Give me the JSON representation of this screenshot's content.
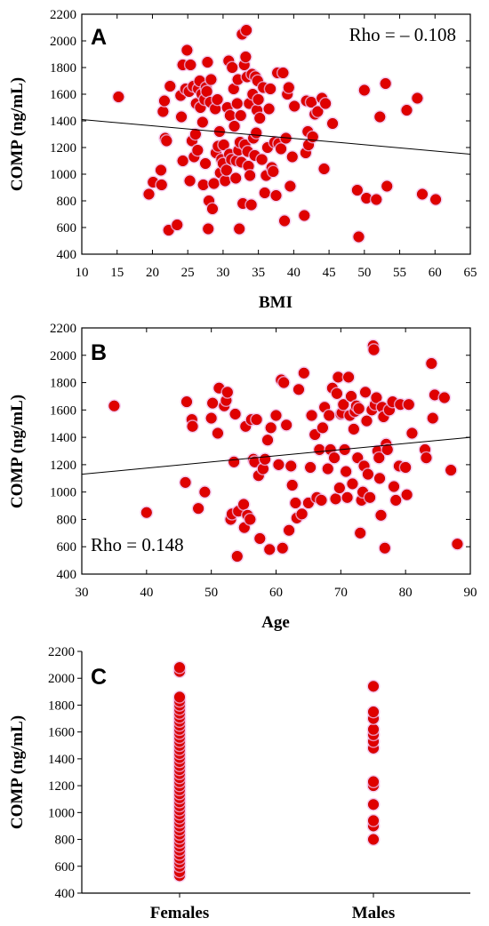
{
  "colors": {
    "point_fill": "#e00000",
    "point_halo": "#f4b8e8",
    "axis": "#000000"
  },
  "chart_data": [
    {
      "panel": "A",
      "type": "scatter",
      "xlabel": "BMI",
      "ylabel": "COMP (ng/mL)",
      "annotation": "Rho = – 0.108",
      "xlim": [
        10,
        65
      ],
      "ylim": [
        400,
        2200
      ],
      "xticks": [
        10,
        15,
        20,
        25,
        30,
        35,
        40,
        45,
        50,
        55,
        60,
        65
      ],
      "yticks": [
        400,
        600,
        800,
        1000,
        1200,
        1400,
        1600,
        1800,
        2000,
        2200
      ],
      "trendline": [
        [
          10,
          1410
        ],
        [
          65,
          1150
        ]
      ],
      "points": [
        [
          15.2,
          1580
        ],
        [
          19.5,
          850
        ],
        [
          20.1,
          940
        ],
        [
          21.3,
          920
        ],
        [
          21.2,
          1030
        ],
        [
          21.5,
          1470
        ],
        [
          21.7,
          1550
        ],
        [
          21.8,
          1270
        ],
        [
          22.0,
          1250
        ],
        [
          22.3,
          580
        ],
        [
          22.5,
          1660
        ],
        [
          23.5,
          620
        ],
        [
          24.0,
          1590
        ],
        [
          24.1,
          1430
        ],
        [
          24.3,
          1820
        ],
        [
          24.3,
          1100
        ],
        [
          24.7,
          1640
        ],
        [
          24.9,
          1930
        ],
        [
          25.2,
          1620
        ],
        [
          25.3,
          950
        ],
        [
          25.4,
          1820
        ],
        [
          25.6,
          1250
        ],
        [
          25.8,
          1660
        ],
        [
          25.9,
          1130
        ],
        [
          26.1,
          1300
        ],
        [
          26.2,
          1530
        ],
        [
          26.4,
          1180
        ],
        [
          26.5,
          1640
        ],
        [
          26.7,
          1700
        ],
        [
          26.8,
          1500
        ],
        [
          27.0,
          1600
        ],
        [
          27.1,
          1390
        ],
        [
          27.2,
          920
        ],
        [
          27.4,
          1560
        ],
        [
          27.5,
          1080
        ],
        [
          27.6,
          1650
        ],
        [
          27.7,
          1620
        ],
        [
          27.8,
          1840
        ],
        [
          27.9,
          590
        ],
        [
          28.0,
          800
        ],
        [
          28.2,
          1540
        ],
        [
          28.3,
          1710
        ],
        [
          28.5,
          740
        ],
        [
          28.7,
          930
        ],
        [
          28.9,
          1490
        ],
        [
          29.0,
          1160
        ],
        [
          29.2,
          1560
        ],
        [
          29.3,
          1210
        ],
        [
          29.5,
          1320
        ],
        [
          29.6,
          1010
        ],
        [
          29.8,
          1110
        ],
        [
          30.0,
          1080
        ],
        [
          30.1,
          1220
        ],
        [
          30.3,
          950
        ],
        [
          30.5,
          1030
        ],
        [
          30.6,
          1500
        ],
        [
          30.8,
          1850
        ],
        [
          30.9,
          1150
        ],
        [
          31.0,
          1440
        ],
        [
          31.2,
          1110
        ],
        [
          31.3,
          1800
        ],
        [
          31.5,
          1640
        ],
        [
          31.6,
          1360
        ],
        [
          31.8,
          970
        ],
        [
          31.9,
          1100
        ],
        [
          32.0,
          1530
        ],
        [
          32.1,
          1710
        ],
        [
          32.2,
          1180
        ],
        [
          32.3,
          590
        ],
        [
          32.4,
          1240
        ],
        [
          32.5,
          1440
        ],
        [
          32.6,
          1090
        ],
        [
          32.7,
          2050
        ],
        [
          32.8,
          780
        ],
        [
          33.0,
          1820
        ],
        [
          33.1,
          1220
        ],
        [
          33.2,
          1880
        ],
        [
          33.3,
          2080
        ],
        [
          33.4,
          1730
        ],
        [
          33.5,
          1170
        ],
        [
          33.6,
          1060
        ],
        [
          33.7,
          1530
        ],
        [
          33.8,
          990
        ],
        [
          34.0,
          770
        ],
        [
          34.1,
          1750
        ],
        [
          34.2,
          1600
        ],
        [
          34.3,
          1270
        ],
        [
          34.5,
          1140
        ],
        [
          34.6,
          1730
        ],
        [
          34.7,
          1310
        ],
        [
          34.8,
          1480
        ],
        [
          34.9,
          1700
        ],
        [
          35.0,
          1560
        ],
        [
          35.2,
          1420
        ],
        [
          35.5,
          1110
        ],
        [
          35.7,
          1650
        ],
        [
          35.9,
          860
        ],
        [
          36.1,
          990
        ],
        [
          36.3,
          1200
        ],
        [
          36.5,
          1490
        ],
        [
          36.7,
          1640
        ],
        [
          36.9,
          1050
        ],
        [
          37.1,
          1020
        ],
        [
          37.3,
          1240
        ],
        [
          37.5,
          840
        ],
        [
          37.7,
          1760
        ],
        [
          37.9,
          1230
        ],
        [
          38.2,
          1190
        ],
        [
          38.5,
          1760
        ],
        [
          38.7,
          650
        ],
        [
          38.9,
          1270
        ],
        [
          39.1,
          1600
        ],
        [
          39.3,
          1650
        ],
        [
          39.5,
          910
        ],
        [
          39.8,
          1130
        ],
        [
          40.1,
          1510
        ],
        [
          41.5,
          690
        ],
        [
          41.7,
          1160
        ],
        [
          41.8,
          1550
        ],
        [
          42.0,
          1320
        ],
        [
          42.1,
          1220
        ],
        [
          42.5,
          1540
        ],
        [
          42.7,
          1280
        ],
        [
          43.0,
          1450
        ],
        [
          43.4,
          1470
        ],
        [
          44.0,
          1570
        ],
        [
          44.3,
          1040
        ],
        [
          44.5,
          1530
        ],
        [
          45.5,
          1380
        ],
        [
          49.0,
          880
        ],
        [
          49.2,
          530
        ],
        [
          50.0,
          1630
        ],
        [
          50.3,
          820
        ],
        [
          51.7,
          810
        ],
        [
          52.2,
          1430
        ],
        [
          53.0,
          1680
        ],
        [
          53.2,
          910
        ],
        [
          56.0,
          1480
        ],
        [
          57.5,
          1570
        ],
        [
          58.2,
          850
        ],
        [
          60.1,
          810
        ]
      ]
    },
    {
      "panel": "B",
      "type": "scatter",
      "xlabel": "Age",
      "ylabel": "COMP (ng/mL)",
      "annotation": "Rho = 0.148",
      "xlim": [
        30,
        90
      ],
      "ylim": [
        400,
        2200
      ],
      "xticks": [
        30,
        40,
        50,
        60,
        70,
        80,
        90
      ],
      "yticks": [
        400,
        600,
        800,
        1000,
        1200,
        1400,
        1600,
        1800,
        2000,
        2200
      ],
      "trendline": [
        [
          30,
          1130
        ],
        [
          90,
          1400
        ]
      ],
      "points": [
        [
          35.0,
          1630
        ],
        [
          40.0,
          850
        ],
        [
          46.0,
          1070
        ],
        [
          46.2,
          1660
        ],
        [
          47.0,
          1530
        ],
        [
          47.1,
          1480
        ],
        [
          48.0,
          880
        ],
        [
          49.0,
          1000
        ],
        [
          50.0,
          1540
        ],
        [
          50.2,
          1650
        ],
        [
          51.0,
          1430
        ],
        [
          51.2,
          1760
        ],
        [
          52.0,
          1630
        ],
        [
          52.3,
          1670
        ],
        [
          52.5,
          1730
        ],
        [
          53.0,
          800
        ],
        [
          53.2,
          840
        ],
        [
          53.5,
          1220
        ],
        [
          53.7,
          1570
        ],
        [
          54.0,
          530
        ],
        [
          54.2,
          860
        ],
        [
          55.0,
          910
        ],
        [
          55.1,
          740
        ],
        [
          55.3,
          1480
        ],
        [
          55.6,
          830
        ],
        [
          56.0,
          800
        ],
        [
          56.2,
          1530
        ],
        [
          56.5,
          1240
        ],
        [
          56.7,
          1220
        ],
        [
          57.0,
          1530
        ],
        [
          57.3,
          1120
        ],
        [
          57.5,
          660
        ],
        [
          58.0,
          1170
        ],
        [
          58.3,
          1240
        ],
        [
          58.7,
          1380
        ],
        [
          59.0,
          580
        ],
        [
          59.2,
          1470
        ],
        [
          60.0,
          1560
        ],
        [
          60.4,
          1200
        ],
        [
          60.8,
          1820
        ],
        [
          61.0,
          590
        ],
        [
          61.2,
          1800
        ],
        [
          61.6,
          1490
        ],
        [
          62.0,
          720
        ],
        [
          62.3,
          1190
        ],
        [
          62.5,
          1050
        ],
        [
          63.0,
          920
        ],
        [
          63.2,
          810
        ],
        [
          63.5,
          1750
        ],
        [
          64.0,
          840
        ],
        [
          64.3,
          1870
        ],
        [
          65.0,
          920
        ],
        [
          65.3,
          1180
        ],
        [
          65.5,
          1560
        ],
        [
          66.0,
          1420
        ],
        [
          66.3,
          960
        ],
        [
          66.7,
          1310
        ],
        [
          67.0,
          940
        ],
        [
          67.2,
          1470
        ],
        [
          67.5,
          1620
        ],
        [
          68.0,
          1170
        ],
        [
          68.2,
          1560
        ],
        [
          68.4,
          1310
        ],
        [
          68.7,
          1760
        ],
        [
          69.0,
          1250
        ],
        [
          69.2,
          950
        ],
        [
          69.4,
          1720
        ],
        [
          69.6,
          1840
        ],
        [
          69.8,
          1030
        ],
        [
          70.0,
          1570
        ],
        [
          70.2,
          1580
        ],
        [
          70.4,
          1640
        ],
        [
          70.6,
          1310
        ],
        [
          70.8,
          1150
        ],
        [
          71.0,
          960
        ],
        [
          71.2,
          1840
        ],
        [
          71.4,
          1560
        ],
        [
          71.6,
          1700
        ],
        [
          71.8,
          1060
        ],
        [
          72.0,
          1460
        ],
        [
          72.2,
          1590
        ],
        [
          72.4,
          1630
        ],
        [
          72.6,
          1250
        ],
        [
          72.8,
          1610
        ],
        [
          73.0,
          700
        ],
        [
          73.2,
          940
        ],
        [
          73.4,
          1000
        ],
        [
          73.6,
          1190
        ],
        [
          73.8,
          1730
        ],
        [
          74.0,
          1520
        ],
        [
          74.2,
          1130
        ],
        [
          74.5,
          960
        ],
        [
          74.8,
          1600
        ],
        [
          75.0,
          2070
        ],
        [
          75.1,
          2040
        ],
        [
          75.3,
          1640
        ],
        [
          75.5,
          1690
        ],
        [
          75.7,
          1300
        ],
        [
          75.9,
          1250
        ],
        [
          76.0,
          1100
        ],
        [
          76.2,
          830
        ],
        [
          76.4,
          1620
        ],
        [
          76.6,
          1550
        ],
        [
          76.8,
          590
        ],
        [
          77.0,
          1350
        ],
        [
          77.2,
          1310
        ],
        [
          77.5,
          1600
        ],
        [
          78.0,
          1660
        ],
        [
          78.2,
          1040
        ],
        [
          78.5,
          940
        ],
        [
          79.0,
          1190
        ],
        [
          79.2,
          1640
        ],
        [
          80.0,
          1180
        ],
        [
          80.2,
          980
        ],
        [
          80.5,
          1640
        ],
        [
          81.0,
          1430
        ],
        [
          83.0,
          1310
        ],
        [
          83.2,
          1250
        ],
        [
          84.0,
          1940
        ],
        [
          84.2,
          1540
        ],
        [
          84.5,
          1710
        ],
        [
          86.0,
          1690
        ],
        [
          87.0,
          1160
        ],
        [
          88.0,
          620
        ]
      ]
    },
    {
      "panel": "C",
      "type": "scatter",
      "ylabel": "COMP (ng/mL)",
      "categories": [
        "Females",
        "Males"
      ],
      "ylim": [
        400,
        2200
      ],
      "yticks": [
        400,
        600,
        800,
        1000,
        1200,
        1400,
        1600,
        1800,
        2000,
        2200
      ],
      "series": [
        {
          "name": "Females",
          "values": [
            530,
            560,
            600,
            630,
            660,
            690,
            720,
            750,
            780,
            810,
            840,
            870,
            900,
            930,
            960,
            990,
            1020,
            1050,
            1080,
            1110,
            1140,
            1170,
            1200,
            1230,
            1260,
            1290,
            1320,
            1350,
            1380,
            1410,
            1440,
            1470,
            1500,
            1530,
            1560,
            1590,
            1620,
            1650,
            1680,
            1710,
            1740,
            1770,
            1800,
            1830,
            1860,
            2050,
            2080
          ]
        },
        {
          "name": "Males",
          "values": [
            800,
            900,
            940,
            1060,
            1200,
            1230,
            1480,
            1530,
            1580,
            1620,
            1700,
            1750,
            1940
          ]
        }
      ]
    }
  ]
}
